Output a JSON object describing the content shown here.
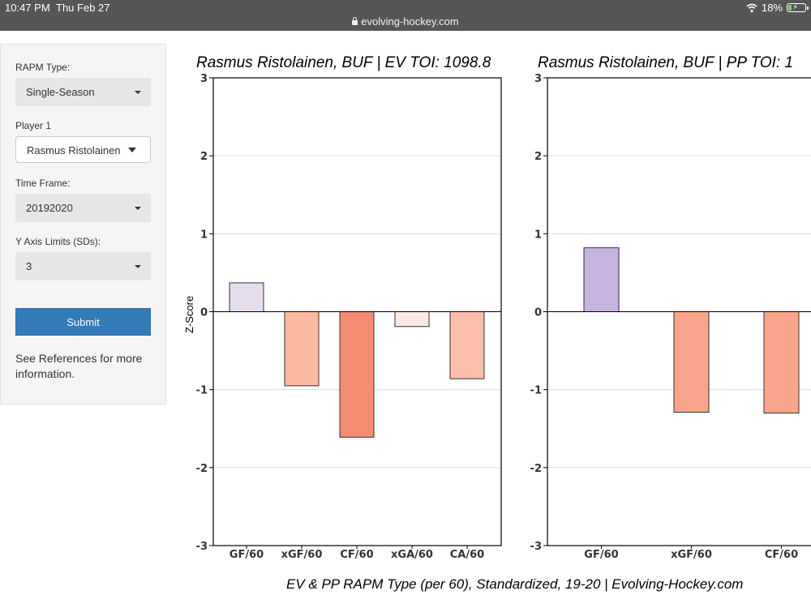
{
  "status": {
    "time": "10:47 PM",
    "date": "Thu Feb 27",
    "battery": "18%",
    "battery_level": 0.18
  },
  "browser": {
    "url": "evolving-hockey.com"
  },
  "sidebar": {
    "rapm_type_label": "RAPM Type:",
    "rapm_type_value": "Single-Season",
    "player_label": "Player 1",
    "player_value": "Rasmus Ristolainen",
    "timeframe_label": "Time Frame:",
    "timeframe_value": "20192020",
    "ylim_label": "Y Axis Limits (SDs):",
    "ylim_value": "3",
    "submit_label": "Submit",
    "refs_text": "See References for more information."
  },
  "footer": "EV & PP RAPM Type (per 60), Standardized, 19-20    |    Evolving-Hockey.com",
  "chart_data": [
    {
      "type": "bar",
      "title": "Rasmus Ristolainen, BUF  |  EV TOI: 1098.8",
      "ylabel": "Z-Score",
      "ylim": [
        -3,
        3
      ],
      "yticks": [
        "3",
        "2",
        "1",
        "0",
        "-1",
        "-2",
        "-3"
      ],
      "grid": true,
      "categories": [
        "GF/60",
        "xGF/60",
        "CF/60",
        "xGA/60",
        "CA/60"
      ],
      "values": [
        0.37,
        -0.95,
        -1.61,
        -0.19,
        -0.86
      ],
      "colors": [
        "#e6dcef",
        "#fcbba1",
        "#f68b73",
        "#fde9e2",
        "#fcbeaa"
      ]
    },
    {
      "type": "bar",
      "title": "Rasmus Ristolainen, BUF  |  PP TOI: 1",
      "ylabel": "",
      "ylim": [
        -3,
        3
      ],
      "yticks": [
        "3",
        "2",
        "1",
        "0",
        "-1",
        "-2",
        "-3"
      ],
      "grid": true,
      "categories": [
        "GF/60",
        "xGF/60",
        "CF/60"
      ],
      "values": [
        0.82,
        -1.29,
        -1.3
      ],
      "colors": [
        "#c6b4de",
        "#f9a58b",
        "#f9a58b"
      ]
    }
  ]
}
